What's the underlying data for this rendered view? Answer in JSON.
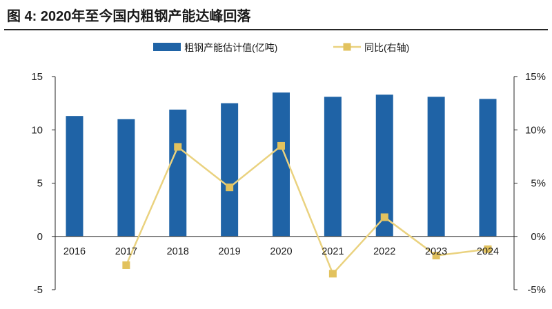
{
  "colors": {
    "bar": "#1f63a6",
    "line": "#ead27f",
    "marker": "#e2c25e",
    "axis": "#262626",
    "text": "#1a1a1a"
  },
  "chart_data": {
    "type": "bar",
    "title": "图 4: 2020年至今国内粗钢产能达峰回落",
    "categories": [
      "2016",
      "2017",
      "2018",
      "2019",
      "2020",
      "2021",
      "2022",
      "2023",
      "2024"
    ],
    "series": [
      {
        "name": "粗钢产能估计值(亿吨)",
        "type": "bar",
        "y_axis": "left",
        "values": [
          11.3,
          11.0,
          11.9,
          12.5,
          13.5,
          13.1,
          13.3,
          13.1,
          12.9
        ]
      },
      {
        "name": "同比(右轴)",
        "type": "line",
        "y_axis": "right",
        "values": [
          null,
          -2.7,
          8.4,
          4.6,
          8.5,
          -3.5,
          1.8,
          -1.8,
          -1.2
        ]
      }
    ],
    "xlabel": "",
    "y_left": {
      "lim": [
        -5,
        15
      ],
      "ticks": [
        -5,
        0,
        5,
        10,
        15
      ],
      "tick_labels": [
        "-5",
        "0",
        "5",
        "10",
        "15"
      ]
    },
    "y_right": {
      "lim": [
        -5,
        15
      ],
      "ticks": [
        -5,
        0,
        5,
        10,
        15
      ],
      "tick_labels": [
        "-5%",
        "0%",
        "5%",
        "10%",
        "15%"
      ]
    },
    "grid": false,
    "legend_position": "top-center"
  }
}
